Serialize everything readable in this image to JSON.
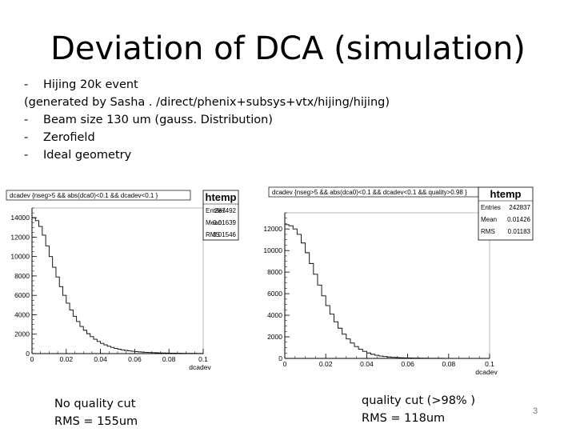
{
  "slide": {
    "title": "Deviation of DCA (simulation)",
    "bullets": {
      "b1_dash": "-",
      "b1": "Hijing 20k event",
      "b2": "(generated by Sasha . /direct/phenix+subsys+vtx/hijing/hijing)",
      "b3_dash": "-",
      "b3": "Beam size 130 um (gauss. Distribution)",
      "b4_dash": "-",
      "b4": "Zerofield",
      "b5_dash": "-",
      "b5": "Ideal geometry"
    },
    "captions": {
      "left_line1": "No quality cut",
      "left_line2": "RMS = 155um",
      "right_line1": "quality cut (>98% )",
      "right_line2": "RMS = 118um"
    },
    "page_number": "3"
  },
  "chart_data": [
    {
      "type": "bar",
      "title": "dcadev {nseg>5 && abs(dca0)<0.1 && dcadev<0.1 }",
      "xlabel": "dcadev",
      "ylabel": "",
      "xlim": [
        0,
        0.1
      ],
      "ylim": [
        0,
        15000
      ],
      "xticks": [
        "0",
        "0.02",
        "0.04",
        "0.06",
        "0.08",
        "0.1"
      ],
      "yticks": [
        "0",
        "2000",
        "4000",
        "6000",
        "8000",
        "10000",
        "12000",
        "14000"
      ],
      "x": [
        0.001,
        0.003,
        0.005,
        0.007,
        0.009,
        0.011,
        0.013,
        0.015,
        0.017,
        0.019,
        0.021,
        0.023,
        0.025,
        0.027,
        0.029,
        0.031,
        0.033,
        0.035,
        0.037,
        0.039,
        0.041,
        0.043,
        0.045,
        0.047,
        0.049,
        0.051,
        0.053,
        0.055,
        0.057,
        0.059,
        0.061,
        0.063,
        0.065,
        0.067,
        0.069,
        0.071,
        0.073,
        0.075,
        0.077,
        0.079,
        0.081,
        0.083,
        0.085,
        0.087,
        0.089,
        0.091,
        0.093,
        0.095,
        0.097,
        0.099
      ],
      "values": [
        14000,
        13700,
        13100,
        12200,
        11100,
        10000,
        8900,
        7900,
        6900,
        6000,
        5200,
        4500,
        3850,
        3300,
        2800,
        2400,
        2050,
        1750,
        1480,
        1250,
        1060,
        900,
        760,
        640,
        540,
        460,
        390,
        330,
        280,
        240,
        205,
        175,
        150,
        128,
        110,
        95,
        82,
        71,
        62,
        54,
        47,
        41,
        36,
        32,
        28,
        25,
        22,
        20,
        18,
        16
      ],
      "stats": {
        "name": "htemp",
        "rows": [
          {
            "label": "Entries",
            "value": "287492"
          },
          {
            "label": "Mean",
            "value": "0.01639"
          },
          {
            "label": "RMS",
            "value": "0.01546"
          }
        ]
      }
    },
    {
      "type": "bar",
      "title": "dcadev {nseg>5 && abs(dca0)<0.1 && dcadev<0.1 && quality>0.98 }",
      "xlabel": "dcadev",
      "ylabel": "",
      "xlim": [
        0,
        0.1
      ],
      "ylim": [
        0,
        13500
      ],
      "xticks": [
        "0",
        "0.02",
        "0.04",
        "0.06",
        "0.08",
        "0.1"
      ],
      "yticks": [
        "0",
        "2000",
        "4000",
        "6000",
        "8000",
        "10000",
        "12000"
      ],
      "x": [
        0.001,
        0.003,
        0.005,
        0.007,
        0.009,
        0.011,
        0.013,
        0.015,
        0.017,
        0.019,
        0.021,
        0.023,
        0.025,
        0.027,
        0.029,
        0.031,
        0.033,
        0.035,
        0.037,
        0.039,
        0.041,
        0.043,
        0.045,
        0.047,
        0.049,
        0.051,
        0.053,
        0.055,
        0.057,
        0.059,
        0.061,
        0.063,
        0.065,
        0.067,
        0.069,
        0.071,
        0.073,
        0.075,
        0.077,
        0.079,
        0.081,
        0.083,
        0.085,
        0.087,
        0.089,
        0.091,
        0.093,
        0.095,
        0.097,
        0.099
      ],
      "values": [
        12400,
        12300,
        12000,
        11500,
        10700,
        9800,
        8800,
        7800,
        6800,
        5800,
        4900,
        4100,
        3400,
        2800,
        2250,
        1800,
        1420,
        1100,
        850,
        650,
        500,
        380,
        290,
        220,
        170,
        130,
        100,
        80,
        62,
        50,
        40,
        33,
        27,
        22,
        18,
        15,
        13,
        11,
        9,
        8,
        7,
        6,
        5,
        5,
        4,
        4,
        3,
        3,
        3,
        2
      ],
      "stats": {
        "name": "htemp",
        "rows": [
          {
            "label": "Entries",
            "value": "242837"
          },
          {
            "label": "Mean",
            "value": "0.01426"
          },
          {
            "label": "RMS",
            "value": "0.01183"
          }
        ]
      }
    }
  ]
}
